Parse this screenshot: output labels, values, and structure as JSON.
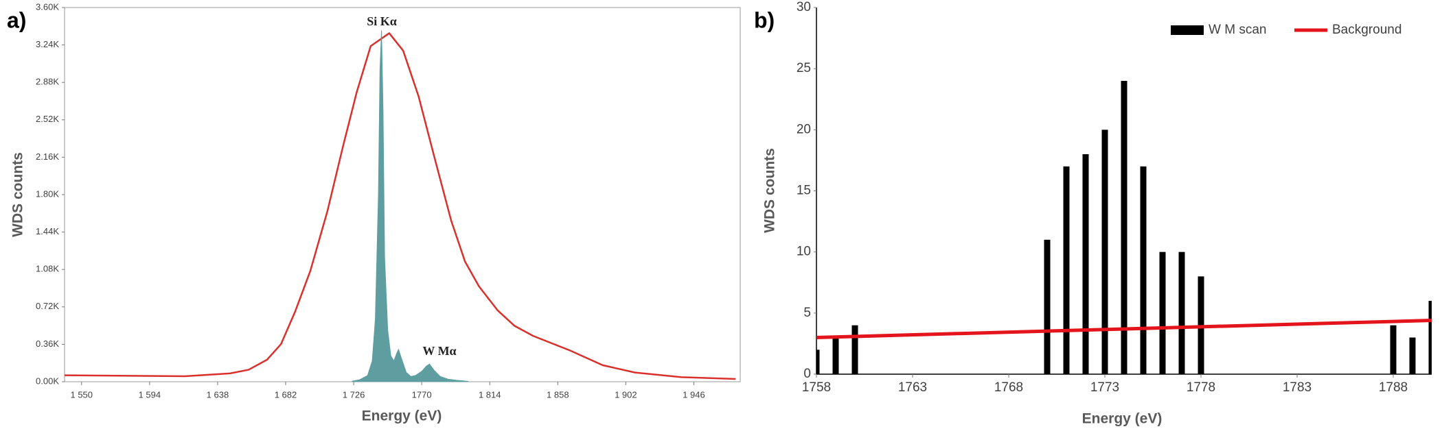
{
  "chart_data": [
    {
      "type": "line",
      "panel_label": "a)",
      "x_label": "Energy (eV)",
      "y_label": "WDS counts",
      "annotations": [
        "Si Kα",
        "W Mα"
      ],
      "xlim": [
        1539,
        1976
      ],
      "xticks": [
        {
          "value": 1550,
          "label": "1 550"
        },
        {
          "value": 1594,
          "label": "1 594"
        },
        {
          "value": 1638,
          "label": "1 638"
        },
        {
          "value": 1682,
          "label": "1 682"
        },
        {
          "value": 1726,
          "label": "1 726"
        },
        1770,
        {
          "value": 1814,
          "label": "1 814"
        },
        {
          "value": 1858,
          "label": "1 858"
        },
        {
          "value": 1902,
          "label": "1 902"
        },
        {
          "value": 1946,
          "label": "1 946"
        }
      ],
      "ylim": [
        0,
        3600
      ],
      "yticks": [
        {
          "value": 0,
          "label": "0.00K"
        },
        {
          "value": 360,
          "label": "0.36K"
        },
        {
          "value": 720,
          "label": "0.72K"
        },
        {
          "value": 1080,
          "label": "1.08K"
        },
        {
          "value": 1440,
          "label": "1.44K"
        },
        {
          "value": 1800,
          "label": "1.80K"
        },
        {
          "value": 2160,
          "label": "2.16K"
        },
        {
          "value": 2520,
          "label": "2.52K"
        },
        {
          "value": 2880,
          "label": "2.88K"
        },
        {
          "value": 3240,
          "label": "3.24K"
        },
        {
          "value": 3600,
          "label": "3.60K"
        }
      ],
      "grid": false,
      "frame": true,
      "series": [
        {
          "kind": "line",
          "color": "#d9302c",
          "x": [
            1539,
            1617,
            1646,
            1658,
            1670,
            1679,
            1688,
            1698,
            1709,
            1719,
            1728,
            1737,
            1749,
            1758,
            1768,
            1778,
            1789,
            1798,
            1807,
            1819,
            1830,
            1842,
            1866,
            1887,
            1908,
            1938,
            1973
          ],
          "values": [
            62,
            53,
            80,
            115,
            212,
            362,
            670,
            1068,
            1641,
            2259,
            2788,
            3229,
            3353,
            3185,
            2744,
            2171,
            1553,
            1156,
            918,
            688,
            538,
            441,
            300,
            159,
            88,
            44,
            26
          ]
        },
        {
          "kind": "area",
          "color": "#5f9ea0",
          "x": [
            1725,
            1730,
            1735,
            1738,
            1740,
            1742,
            1743,
            1744,
            1745,
            1746,
            1748,
            1750,
            1752,
            1754,
            1755,
            1757,
            1760,
            1763,
            1766,
            1770,
            1773,
            1775,
            1778,
            1782,
            1787,
            1792,
            1797,
            1800
          ],
          "values": [
            5,
            20,
            60,
            200,
            600,
            1800,
            3000,
            3380,
            2600,
            1200,
            500,
            250,
            200,
            280,
            310,
            220,
            90,
            50,
            60,
            100,
            150,
            170,
            110,
            50,
            25,
            15,
            8,
            3
          ]
        }
      ]
    },
    {
      "type": "bar",
      "panel_label": "b)",
      "x_label": "Energy (eV)",
      "y_label": "WDS counts",
      "xlim": [
        1758,
        1790
      ],
      "xticks": [
        1758,
        1763,
        1768,
        1773,
        1778,
        1783,
        1788
      ],
      "ylim": [
        0,
        30
      ],
      "yticks": [
        0,
        5,
        10,
        15,
        20,
        25,
        30
      ],
      "grid": false,
      "frame": false,
      "legend": "top-right",
      "series": [
        {
          "name": "W M scan",
          "kind": "bar",
          "color": "#000000",
          "x": [
            1758,
            1759,
            1760,
            1770,
            1771,
            1772,
            1773,
            1774,
            1775,
            1776,
            1777,
            1778,
            1788,
            1789,
            1790
          ],
          "values": [
            2,
            3,
            4,
            11,
            17,
            18,
            20,
            24,
            17,
            10,
            10,
            8,
            4,
            3,
            6
          ]
        },
        {
          "name": "Background",
          "kind": "line",
          "color": "#e3141b",
          "x": [
            1758,
            1790
          ],
          "values": [
            3,
            4.4
          ]
        }
      ]
    }
  ]
}
